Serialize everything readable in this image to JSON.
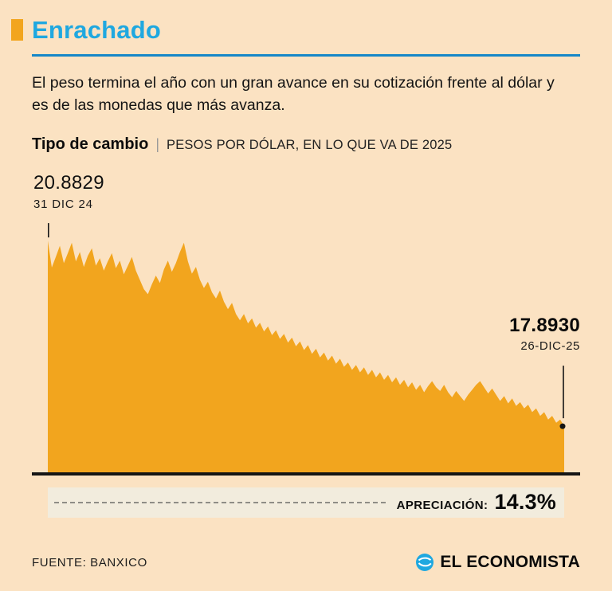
{
  "header": {
    "title": "Enrachado"
  },
  "intro": "El peso termina el año con un gran avance en su cotización frente al dólar y es de las monedas que más avanza.",
  "chart_header": {
    "title": "Tipo de cambio",
    "separator": "|",
    "subtitle": "PESOS POR DÓLAR, EN LO QUE VA DE 2025"
  },
  "annotations": {
    "start": {
      "value": "20.8829",
      "date": "31 DIC 24"
    },
    "end": {
      "value": "17.8930",
      "date": "26-DIC-25"
    }
  },
  "appreciation": {
    "label": "APRECIACIÓN:",
    "value": "14.3%"
  },
  "footer": {
    "source": "FUENTE: BANXICO",
    "brand": "EL ECONOMISTA"
  },
  "colors": {
    "background": "#fbe2c2",
    "accent_orange": "#f2a51e",
    "title_cyan": "#1fa8e0",
    "rule_blue": "#1587c8",
    "axis_black": "#151515",
    "band_beige": "#f2ecdd"
  },
  "chart_data": {
    "type": "area",
    "title": "Tipo de cambio",
    "subtitle": "Pesos por dólar, en lo que va de 2025",
    "x_start_label": "31 DIC 24",
    "x_end_label": "26-DIC-25",
    "start_value": 20.8829,
    "end_value": 17.893,
    "appreciation_pct": 14.3,
    "ylim": [
      17.15,
      21.0
    ],
    "grid": false,
    "legend": false,
    "fill_color": "#f2a51e",
    "values": [
      20.883,
      20.45,
      20.62,
      20.8,
      20.52,
      20.68,
      20.85,
      20.55,
      20.7,
      20.46,
      20.64,
      20.76,
      20.48,
      20.6,
      20.4,
      20.55,
      20.68,
      20.44,
      20.56,
      20.34,
      20.48,
      20.62,
      20.4,
      20.25,
      20.1,
      20.02,
      20.18,
      20.32,
      20.2,
      20.42,
      20.56,
      20.38,
      20.52,
      20.7,
      20.85,
      20.55,
      20.35,
      20.46,
      20.25,
      20.12,
      20.22,
      20.05,
      19.95,
      20.08,
      19.9,
      19.78,
      19.88,
      19.7,
      19.6,
      19.7,
      19.55,
      19.63,
      19.48,
      19.56,
      19.42,
      19.5,
      19.36,
      19.44,
      19.3,
      19.38,
      19.24,
      19.32,
      19.18,
      19.26,
      19.12,
      19.2,
      19.06,
      19.14,
      19.0,
      19.08,
      18.95,
      19.03,
      18.9,
      18.98,
      18.85,
      18.92,
      18.8,
      18.88,
      18.76,
      18.84,
      18.72,
      18.8,
      18.68,
      18.76,
      18.64,
      18.72,
      18.6,
      18.68,
      18.56,
      18.64,
      18.52,
      18.6,
      18.48,
      18.56,
      18.44,
      18.54,
      18.62,
      18.52,
      18.46,
      18.56,
      18.44,
      18.36,
      18.46,
      18.38,
      18.3,
      18.4,
      18.48,
      18.56,
      18.62,
      18.52,
      18.42,
      18.5,
      18.4,
      18.3,
      18.38,
      18.26,
      18.34,
      18.22,
      18.28,
      18.18,
      18.24,
      18.12,
      18.18,
      18.06,
      18.12,
      18.0,
      18.06,
      17.95,
      18.0,
      17.893
    ]
  }
}
